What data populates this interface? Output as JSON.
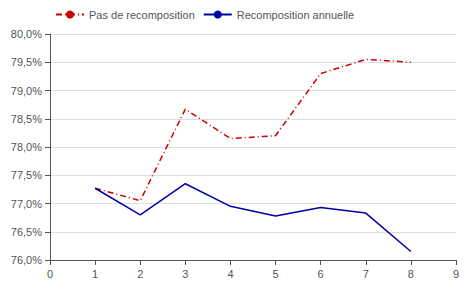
{
  "chart_data": {
    "type": "line",
    "x": [
      1,
      2,
      3,
      4,
      5,
      6,
      7,
      8
    ],
    "series": [
      {
        "name": "Pas de recomposition",
        "color": "#cc0000",
        "line_style": "dashdot",
        "values": [
          0.7727,
          0.7705,
          0.7867,
          0.7815,
          0.782,
          0.793,
          0.7955,
          0.795
        ]
      },
      {
        "name": "Recomposition annuelle",
        "color": "#0000aa",
        "line_style": "solid",
        "values": [
          0.7727,
          0.768,
          0.7735,
          0.7695,
          0.7678,
          0.7693,
          0.7683,
          0.7615
        ]
      }
    ],
    "xlim": [
      0,
      9
    ],
    "xticks": [
      0,
      1,
      2,
      3,
      4,
      5,
      6,
      7,
      8,
      9
    ],
    "ylim": [
      0.76,
      0.8
    ],
    "yticks": [
      {
        "value": 0.76,
        "label": "76,0%"
      },
      {
        "value": 0.765,
        "label": "76,5%"
      },
      {
        "value": 0.77,
        "label": "77,0%"
      },
      {
        "value": 0.775,
        "label": "77,5%"
      },
      {
        "value": 0.78,
        "label": "78,0%"
      },
      {
        "value": 0.785,
        "label": "78,5%"
      },
      {
        "value": 0.79,
        "label": "79,0%"
      },
      {
        "value": 0.795,
        "label": "79,5%"
      },
      {
        "value": 0.8,
        "label": "80,0%"
      }
    ],
    "grid": true,
    "legend": "upper left"
  }
}
